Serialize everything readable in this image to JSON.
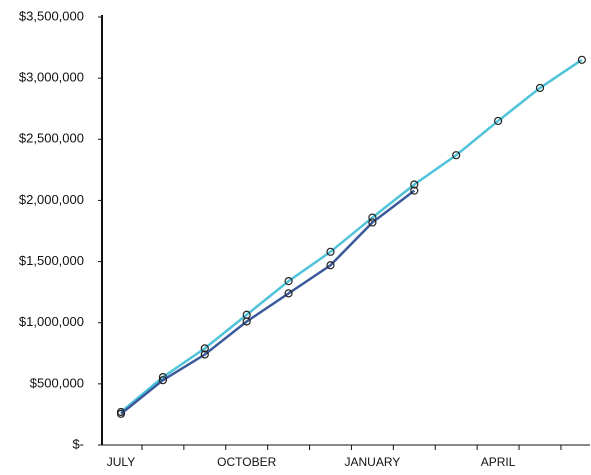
{
  "chart_data": {
    "type": "line",
    "categories": [
      "JULY",
      null,
      null,
      "OCTOBER",
      null,
      null,
      "JANUARY",
      null,
      null,
      "APRIL",
      null,
      null
    ],
    "series": [
      {
        "color": "#4fc3d9",
        "values": [
          270000,
          555000,
          790000,
          1065000,
          1340000,
          1580000,
          1860000,
          2130000,
          2370000,
          2650000,
          2920000,
          3150000
        ]
      },
      {
        "color": "#3a5a9c",
        "values": [
          255000,
          530000,
          740000,
          1010000,
          1240000,
          1470000,
          1820000,
          2080000,
          null,
          null,
          null,
          null
        ]
      }
    ],
    "ylim": [
      0,
      3500000
    ],
    "yticks": [
      {
        "value": 0,
        "label": "$-"
      },
      {
        "value": 500000,
        "label": "$500,000"
      },
      {
        "value": 1000000,
        "label": "$1,000,000"
      },
      {
        "value": 1500000,
        "label": "$1,500,000"
      },
      {
        "value": 2000000,
        "label": "$2,000,000"
      },
      {
        "value": 2500000,
        "label": "$2,500,000"
      },
      {
        "value": 3000000,
        "label": "$3,000,000"
      },
      {
        "value": 3500000,
        "label": "$3,500,000"
      }
    ]
  }
}
